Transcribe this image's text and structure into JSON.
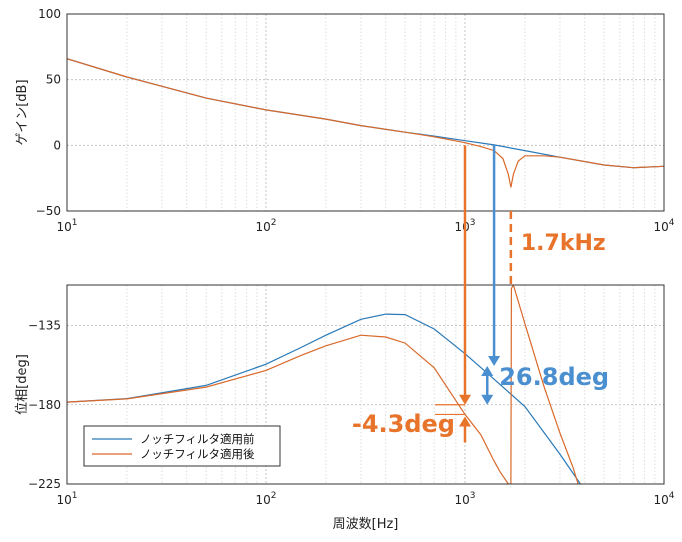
{
  "colors": {
    "before": "#2a7ab8",
    "after": "#d9692b",
    "anno_orange": "#e8732a",
    "anno_blue": "#4a8fd0",
    "grid": "#cfcfcf"
  },
  "chart_data": [
    {
      "type": "line",
      "xscale": "log",
      "xlim": [
        10,
        10000
      ],
      "ylim": [
        -50,
        100
      ],
      "ylabel": "ゲイン[dB]",
      "xlabel": "",
      "grid": true,
      "yticks": [
        "100",
        "50",
        "0",
        "−50"
      ],
      "xticks": [
        "10^1",
        "10^2",
        "10^3",
        "10^4"
      ],
      "series": [
        {
          "name": "ノッチフィルタ適用前",
          "x": [
            10,
            20,
            50,
            100,
            200,
            300,
            500,
            700,
            1000,
            1400,
            2000,
            3000,
            5000,
            7000,
            10000
          ],
          "y": [
            66,
            52,
            36,
            27,
            20,
            15,
            10,
            7,
            3.5,
            0.3,
            -4,
            -9,
            -15,
            -17,
            -16
          ]
        },
        {
          "name": "ノッチフィルタ適用後",
          "x": [
            10,
            20,
            50,
            100,
            200,
            300,
            500,
            700,
            1000,
            1200,
            1400,
            1550,
            1650,
            1700,
            1750,
            1850,
            2000,
            2500,
            3000,
            5000,
            7000,
            10000
          ],
          "y": [
            66,
            52,
            36,
            27,
            20,
            15,
            10,
            6.5,
            2,
            -1,
            -4,
            -10,
            -22,
            -32,
            -22,
            -12,
            -8,
            -8,
            -9,
            -15,
            -17,
            -16
          ]
        }
      ]
    },
    {
      "type": "line",
      "xscale": "log",
      "xlim": [
        10,
        10000
      ],
      "ylim": [
        -225,
        -112
      ],
      "ylabel": "位相[deg]",
      "xlabel": "周波数[Hz]",
      "grid": true,
      "yticks": [
        "−135",
        "−180",
        "−225"
      ],
      "xticks": [
        "10^1",
        "10^2",
        "10^3",
        "10^4"
      ],
      "legend": "bottom-left",
      "series": [
        {
          "name": "ノッチフィルタ適用前",
          "x": [
            10,
            20,
            50,
            100,
            150,
            200,
            300,
            400,
            500,
            700,
            1000,
            1400,
            2000,
            3000,
            3800
          ],
          "y": [
            -178.5,
            -176.5,
            -169,
            -157,
            -147.5,
            -140.5,
            -131.5,
            -128.5,
            -128.8,
            -137,
            -151,
            -165.5,
            -181,
            -208,
            -225
          ]
        },
        {
          "name": "ノッチフィルタ適用後",
          "x": [
            10,
            20,
            50,
            100,
            150,
            200,
            300,
            400,
            500,
            700,
            1000,
            1200,
            1400,
            1500,
            1650,
            1700,
            1710,
            1750,
            2000,
            2500,
            3000,
            3500,
            3700
          ],
          "y": [
            -178.5,
            -176.7,
            -170,
            -160.5,
            -152,
            -146.5,
            -140.5,
            -141.5,
            -145,
            -159,
            -185.5,
            -197,
            -212,
            -218,
            -225,
            -225,
            -114,
            -112,
            -134,
            -170,
            -196,
            -216,
            -225
          ]
        }
      ]
    }
  ],
  "annotations": {
    "freq": "1.7kHz",
    "blue_delta": "26.8deg",
    "orange_delta": "-4.3deg"
  }
}
